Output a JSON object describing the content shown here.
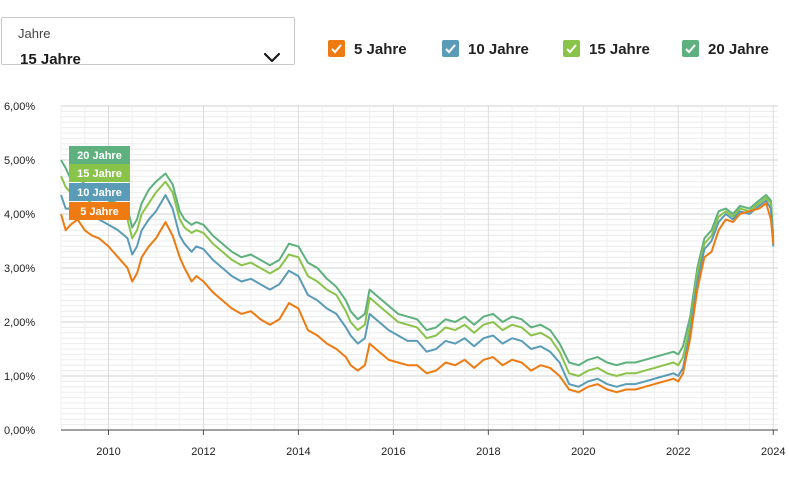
{
  "selector": {
    "label": "Jahre",
    "value": "15 Jahre",
    "icon": "chevron-down-icon"
  },
  "legend": [
    {
      "label": "5 Jahre",
      "color": "#ee7a12"
    },
    {
      "label": "10 Jahre",
      "color": "#5a9bb8"
    },
    {
      "label": "15 Jahre",
      "color": "#8ac34a"
    },
    {
      "label": "20 Jahre",
      "color": "#5eb07e"
    }
  ],
  "chart_data": {
    "type": "line",
    "xlim": [
      2009.0,
      2024.1
    ],
    "ylim": [
      0,
      6
    ],
    "ytick_labels": [
      "0,00%",
      "1,00%",
      "2,00%",
      "3,00%",
      "4,00%",
      "5,00%",
      "6,00%"
    ],
    "xtick_labels": [
      "2010",
      "2012",
      "2014",
      "2016",
      "2018",
      "2020",
      "2022",
      "2024"
    ],
    "grid": true,
    "series": [
      {
        "name": "5 Jahre",
        "color": "#ee7a12",
        "x": [
          2009.0,
          2009.1,
          2009.2,
          2009.35,
          2009.5,
          2009.65,
          2009.8,
          2010.0,
          2010.2,
          2010.4,
          2010.5,
          2010.6,
          2010.7,
          2010.85,
          2011.0,
          2011.2,
          2011.35,
          2011.5,
          2011.6,
          2011.75,
          2011.85,
          2012.0,
          2012.2,
          2012.4,
          2012.6,
          2012.8,
          2013.0,
          2013.2,
          2013.4,
          2013.6,
          2013.8,
          2014.0,
          2014.2,
          2014.4,
          2014.6,
          2014.8,
          2015.0,
          2015.1,
          2015.25,
          2015.4,
          2015.5,
          2015.7,
          2015.9,
          2016.1,
          2016.3,
          2016.5,
          2016.7,
          2016.9,
          2017.1,
          2017.3,
          2017.5,
          2017.7,
          2017.9,
          2018.1,
          2018.3,
          2018.5,
          2018.7,
          2018.9,
          2019.1,
          2019.3,
          2019.5,
          2019.7,
          2019.9,
          2020.1,
          2020.3,
          2020.5,
          2020.7,
          2020.9,
          2021.1,
          2021.3,
          2021.5,
          2021.7,
          2021.9,
          2022.0,
          2022.1,
          2022.25,
          2022.4,
          2022.55,
          2022.7,
          2022.85,
          2023.0,
          2023.15,
          2023.3,
          2023.5,
          2023.7,
          2023.85,
          2023.95,
          2024.0
        ],
        "y": [
          4.0,
          3.7,
          3.8,
          3.9,
          3.7,
          3.6,
          3.55,
          3.4,
          3.2,
          3.0,
          2.75,
          2.9,
          3.2,
          3.4,
          3.55,
          3.85,
          3.6,
          3.2,
          3.0,
          2.75,
          2.85,
          2.75,
          2.55,
          2.4,
          2.25,
          2.15,
          2.2,
          2.05,
          1.95,
          2.05,
          2.35,
          2.25,
          1.85,
          1.75,
          1.6,
          1.5,
          1.35,
          1.2,
          1.1,
          1.2,
          1.6,
          1.45,
          1.3,
          1.25,
          1.2,
          1.2,
          1.05,
          1.1,
          1.25,
          1.2,
          1.3,
          1.15,
          1.3,
          1.35,
          1.2,
          1.3,
          1.25,
          1.1,
          1.2,
          1.15,
          1.0,
          0.75,
          0.7,
          0.8,
          0.85,
          0.75,
          0.7,
          0.75,
          0.75,
          0.8,
          0.85,
          0.9,
          0.95,
          0.9,
          1.05,
          1.7,
          2.6,
          3.2,
          3.3,
          3.7,
          3.9,
          3.85,
          4.0,
          4.05,
          4.1,
          4.2,
          3.9,
          3.45
        ]
      },
      {
        "name": "10 Jahre",
        "color": "#5a9bb8",
        "x": [
          2009.0,
          2009.1,
          2009.2,
          2009.35,
          2009.5,
          2009.65,
          2009.8,
          2010.0,
          2010.2,
          2010.4,
          2010.5,
          2010.6,
          2010.7,
          2010.85,
          2011.0,
          2011.2,
          2011.35,
          2011.5,
          2011.6,
          2011.75,
          2011.85,
          2012.0,
          2012.2,
          2012.4,
          2012.6,
          2012.8,
          2013.0,
          2013.2,
          2013.4,
          2013.6,
          2013.8,
          2014.0,
          2014.2,
          2014.4,
          2014.6,
          2014.8,
          2015.0,
          2015.1,
          2015.25,
          2015.4,
          2015.5,
          2015.7,
          2015.9,
          2016.1,
          2016.3,
          2016.5,
          2016.7,
          2016.9,
          2017.1,
          2017.3,
          2017.5,
          2017.7,
          2017.9,
          2018.1,
          2018.3,
          2018.5,
          2018.7,
          2018.9,
          2019.1,
          2019.3,
          2019.5,
          2019.7,
          2019.9,
          2020.1,
          2020.3,
          2020.5,
          2020.7,
          2020.9,
          2021.1,
          2021.3,
          2021.5,
          2021.7,
          2021.9,
          2022.0,
          2022.1,
          2022.25,
          2022.4,
          2022.55,
          2022.7,
          2022.85,
          2023.0,
          2023.15,
          2023.3,
          2023.5,
          2023.7,
          2023.85,
          2023.95,
          2024.0
        ],
        "y": [
          4.35,
          4.1,
          4.1,
          4.2,
          4.0,
          3.95,
          3.9,
          3.8,
          3.7,
          3.55,
          3.25,
          3.4,
          3.7,
          3.9,
          4.05,
          4.35,
          4.1,
          3.6,
          3.45,
          3.3,
          3.4,
          3.35,
          3.15,
          3.0,
          2.85,
          2.75,
          2.8,
          2.7,
          2.6,
          2.7,
          2.95,
          2.85,
          2.5,
          2.4,
          2.25,
          2.15,
          1.9,
          1.75,
          1.6,
          1.7,
          2.15,
          2.0,
          1.85,
          1.75,
          1.65,
          1.65,
          1.45,
          1.5,
          1.65,
          1.6,
          1.7,
          1.55,
          1.7,
          1.75,
          1.6,
          1.7,
          1.65,
          1.5,
          1.55,
          1.45,
          1.25,
          0.85,
          0.8,
          0.9,
          0.95,
          0.85,
          0.8,
          0.85,
          0.85,
          0.9,
          0.95,
          1.0,
          1.05,
          1.0,
          1.15,
          1.8,
          2.75,
          3.35,
          3.5,
          3.85,
          4.0,
          3.9,
          4.05,
          4.0,
          4.15,
          4.25,
          4.1,
          3.4
        ]
      },
      {
        "name": "15 Jahre",
        "color": "#8ac34a",
        "x": [
          2009.0,
          2009.1,
          2009.2,
          2009.35,
          2009.5,
          2009.65,
          2009.8,
          2010.0,
          2010.2,
          2010.4,
          2010.5,
          2010.6,
          2010.7,
          2010.85,
          2011.0,
          2011.2,
          2011.35,
          2011.5,
          2011.6,
          2011.75,
          2011.85,
          2012.0,
          2012.2,
          2012.4,
          2012.6,
          2012.8,
          2013.0,
          2013.2,
          2013.4,
          2013.6,
          2013.8,
          2014.0,
          2014.2,
          2014.4,
          2014.6,
          2014.8,
          2015.0,
          2015.1,
          2015.25,
          2015.4,
          2015.5,
          2015.7,
          2015.9,
          2016.1,
          2016.3,
          2016.5,
          2016.7,
          2016.9,
          2017.1,
          2017.3,
          2017.5,
          2017.7,
          2017.9,
          2018.1,
          2018.3,
          2018.5,
          2018.7,
          2018.9,
          2019.1,
          2019.3,
          2019.5,
          2019.7,
          2019.9,
          2020.1,
          2020.3,
          2020.5,
          2020.7,
          2020.9,
          2021.1,
          2021.3,
          2021.5,
          2021.7,
          2021.9,
          2022.0,
          2022.1,
          2022.25,
          2022.4,
          2022.55,
          2022.7,
          2022.85,
          2023.0,
          2023.15,
          2023.3,
          2023.5,
          2023.7,
          2023.85,
          2023.95,
          2024.0
        ],
        "y": [
          4.7,
          4.5,
          4.4,
          4.45,
          4.3,
          4.2,
          4.15,
          4.05,
          4.0,
          3.9,
          3.55,
          3.7,
          4.0,
          4.2,
          4.4,
          4.6,
          4.4,
          3.9,
          3.75,
          3.65,
          3.7,
          3.65,
          3.45,
          3.3,
          3.15,
          3.05,
          3.1,
          3.0,
          2.9,
          3.0,
          3.25,
          3.2,
          2.85,
          2.75,
          2.6,
          2.5,
          2.2,
          2.0,
          1.85,
          1.95,
          2.45,
          2.3,
          2.15,
          2.0,
          1.95,
          1.9,
          1.7,
          1.75,
          1.9,
          1.85,
          1.95,
          1.8,
          1.95,
          2.0,
          1.85,
          1.95,
          1.9,
          1.75,
          1.8,
          1.7,
          1.45,
          1.05,
          1.0,
          1.1,
          1.15,
          1.05,
          1.0,
          1.05,
          1.05,
          1.1,
          1.15,
          1.2,
          1.25,
          1.2,
          1.35,
          1.95,
          2.9,
          3.45,
          3.6,
          3.95,
          4.05,
          3.95,
          4.1,
          4.05,
          4.2,
          4.3,
          4.2,
          3.5
        ]
      },
      {
        "name": "20 Jahre",
        "color": "#5eb07e",
        "x": [
          2009.0,
          2009.1,
          2009.2,
          2009.35,
          2009.5,
          2009.65,
          2009.8,
          2010.0,
          2010.2,
          2010.4,
          2010.5,
          2010.6,
          2010.7,
          2010.85,
          2011.0,
          2011.2,
          2011.35,
          2011.5,
          2011.6,
          2011.75,
          2011.85,
          2012.0,
          2012.2,
          2012.4,
          2012.6,
          2012.8,
          2013.0,
          2013.2,
          2013.4,
          2013.6,
          2013.8,
          2014.0,
          2014.2,
          2014.4,
          2014.6,
          2014.8,
          2015.0,
          2015.1,
          2015.25,
          2015.4,
          2015.5,
          2015.7,
          2015.9,
          2016.1,
          2016.3,
          2016.5,
          2016.7,
          2016.9,
          2017.1,
          2017.3,
          2017.5,
          2017.7,
          2017.9,
          2018.1,
          2018.3,
          2018.5,
          2018.7,
          2018.9,
          2019.1,
          2019.3,
          2019.5,
          2019.7,
          2019.9,
          2020.1,
          2020.3,
          2020.5,
          2020.7,
          2020.9,
          2021.1,
          2021.3,
          2021.5,
          2021.7,
          2021.9,
          2022.0,
          2022.1,
          2022.25,
          2022.4,
          2022.55,
          2022.7,
          2022.85,
          2023.0,
          2023.15,
          2023.3,
          2023.5,
          2023.7,
          2023.85,
          2023.95,
          2024.0
        ],
        "y": [
          5.0,
          4.85,
          4.65,
          4.7,
          4.55,
          4.45,
          4.35,
          4.25,
          4.2,
          4.1,
          3.75,
          3.9,
          4.2,
          4.45,
          4.6,
          4.75,
          4.55,
          4.05,
          3.9,
          3.8,
          3.85,
          3.8,
          3.6,
          3.45,
          3.3,
          3.2,
          3.25,
          3.15,
          3.05,
          3.15,
          3.45,
          3.4,
          3.1,
          3.0,
          2.8,
          2.65,
          2.4,
          2.2,
          2.05,
          2.15,
          2.6,
          2.45,
          2.3,
          2.15,
          2.1,
          2.05,
          1.85,
          1.9,
          2.05,
          2.0,
          2.1,
          1.95,
          2.1,
          2.15,
          2.0,
          2.1,
          2.05,
          1.9,
          1.95,
          1.85,
          1.6,
          1.25,
          1.2,
          1.3,
          1.35,
          1.25,
          1.2,
          1.25,
          1.25,
          1.3,
          1.35,
          1.4,
          1.45,
          1.4,
          1.55,
          2.1,
          3.0,
          3.55,
          3.7,
          4.05,
          4.1,
          4.0,
          4.15,
          4.1,
          4.25,
          4.35,
          4.25,
          3.55
        ]
      }
    ]
  }
}
